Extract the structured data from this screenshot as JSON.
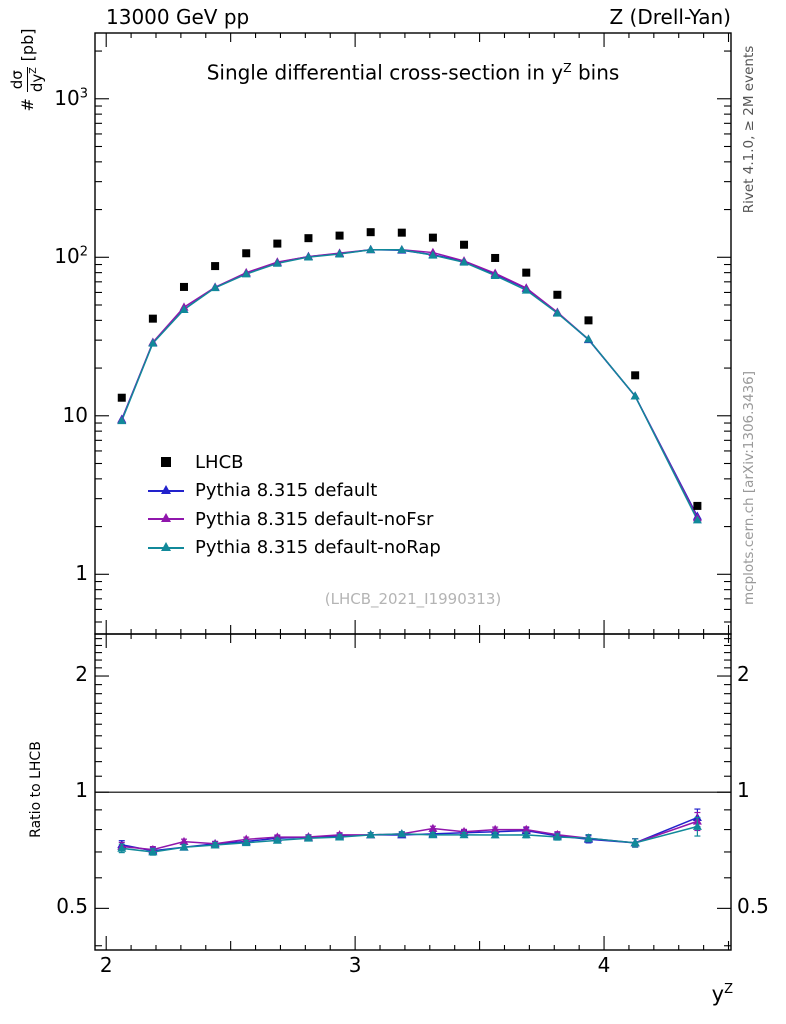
{
  "header": {
    "left": "13000 GeV pp",
    "right": "Z (Drell-Yan)"
  },
  "title": {
    "pre": "Single differential cross-section in y",
    "sup": "Z",
    "post": " bins"
  },
  "ylabel": {
    "prefix": "#",
    "numerator": "dσ",
    "denominator": "dy",
    "denominator_sup": "Z",
    "unit": "[pb]"
  },
  "xlabel": {
    "base": "y",
    "sup": "Z"
  },
  "ratio_label": "Ratio to LHCB",
  "watermark": "(LHCB_2021_I1990313)",
  "side_notes": {
    "top": "Rivet 4.1.0, ≥ 2M events",
    "bottom": "mcplots.cern.ch [arXiv:1306.3436]"
  },
  "legend": [
    {
      "label": "LHCB",
      "marker": "square",
      "color": "#000000"
    },
    {
      "label": "Pythia 8.315 default",
      "marker": "triangle-line",
      "color": "#2222cc"
    },
    {
      "label": "Pythia 8.315 default-noFsr",
      "marker": "triangle-line",
      "color": "#9016ac"
    },
    {
      "label": "Pythia 8.315 default-noRap",
      "marker": "triangle-line",
      "color": "#11899a"
    }
  ],
  "chart_data": {
    "type": "line",
    "title": "Single differential cross-section in yZ bins",
    "xlabel": "yZ",
    "ylabel_main": "# dσ/dyZ [pb]",
    "ylabel_ratio": "Ratio to LHCB",
    "x": [
      2.0625,
      2.1875,
      2.3125,
      2.4375,
      2.5625,
      2.6875,
      2.8125,
      2.9375,
      3.0625,
      3.1875,
      3.3125,
      3.4375,
      3.5625,
      3.6875,
      3.8125,
      3.9375,
      4.125,
      4.375
    ],
    "series": [
      {
        "name": "LHCB",
        "style": "scatter-square",
        "color": "#000000",
        "values": [
          13,
          41,
          65,
          88,
          106,
          122,
          132,
          137,
          144,
          143,
          133,
          120,
          99,
          80,
          58,
          40,
          18,
          2.7
        ]
      },
      {
        "name": "Pythia 8.315 default",
        "style": "line-triangle",
        "color": "#2222cc",
        "values": [
          9.5,
          28.9,
          46.8,
          64.7,
          79.0,
          92.7,
          101.0,
          105.5,
          111.6,
          110.8,
          103.7,
          94.2,
          78.2,
          63.6,
          44.7,
          30.2,
          13.3,
          2.32
        ]
      },
      {
        "name": "Pythia 8.315 default-noFsr",
        "style": "line-triangle",
        "color": "#9016ac",
        "values": [
          9.4,
          29.1,
          48.4,
          64.7,
          80.0,
          93.3,
          101.0,
          106.2,
          111.6,
          111.5,
          107.1,
          94.8,
          79.2,
          64.0,
          45.0,
          30.4,
          13.3,
          2.27
        ]
      },
      {
        "name": "Pythia 8.315 default-noRap",
        "style": "line-triangle",
        "color": "#11899a",
        "values": [
          9.3,
          28.7,
          46.8,
          64.2,
          78.4,
          91.5,
          100.3,
          104.8,
          111.6,
          111.5,
          103.1,
          93.0,
          76.7,
          62.0,
          44.4,
          30.4,
          13.3,
          2.2
        ]
      }
    ],
    "ratio_reference": "LHCB",
    "ratio_err": [
      0.018,
      0.013,
      0.011,
      0.01,
      0.01,
      0.01,
      0.01,
      0.01,
      0.01,
      0.01,
      0.011,
      0.011,
      0.012,
      0.013,
      0.014,
      0.016,
      0.018,
      0.045
    ],
    "axes": {
      "x_scale": "linear",
      "y_scale": "log",
      "xlim": [
        1.955,
        4.51
      ],
      "main_ylim": [
        0.42,
        2600
      ],
      "ratio_ylim": [
        0.39,
        2.57
      ],
      "x_major_ticks": [
        2,
        3,
        4
      ],
      "main_y_ticks": [
        {
          "value": 1,
          "label": "1"
        },
        {
          "value": 10,
          "label": "10"
        },
        {
          "value": 100,
          "label": "10",
          "sup": "2"
        },
        {
          "value": 1000,
          "label": "10",
          "sup": "3"
        }
      ],
      "ratio_y_ticks": [
        {
          "value": 0.5,
          "label": "0.5"
        },
        {
          "value": 1,
          "label": "1"
        },
        {
          "value": 2,
          "label": "2"
        }
      ]
    }
  }
}
